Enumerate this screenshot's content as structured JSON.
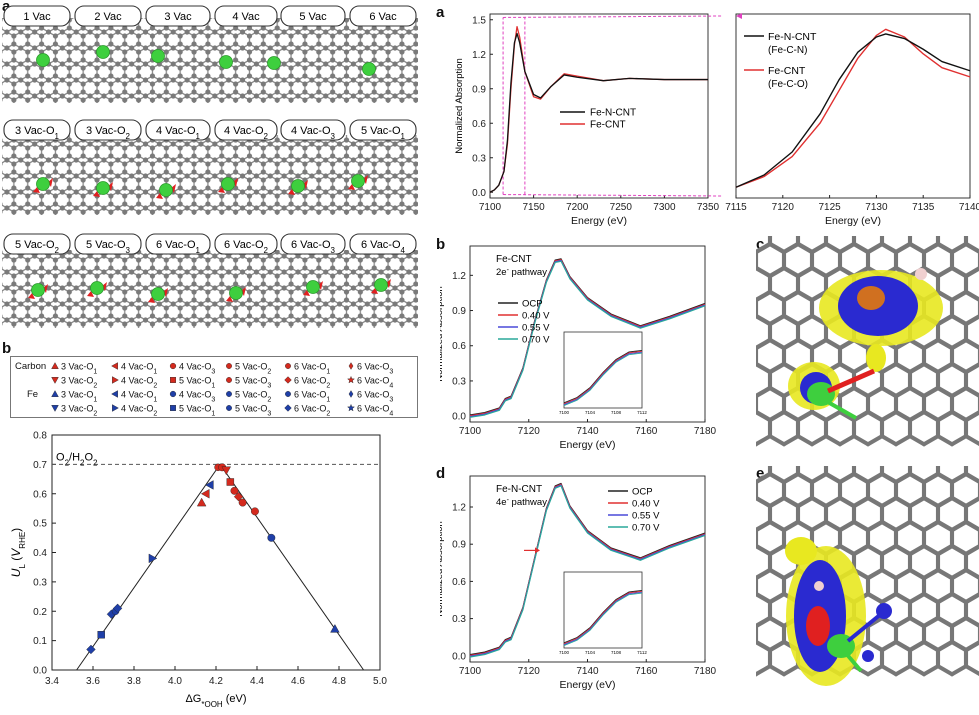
{
  "figure": {
    "panel_labels": {
      "left_a": "a",
      "left_b": "b",
      "right_a": "a",
      "right_b": "b",
      "right_c": "c",
      "right_d": "d",
      "right_e": "e"
    },
    "structures": {
      "row1": [
        "1 Vac",
        "2 Vac",
        "3 Vac",
        "4 Vac",
        "5 Vac",
        "6 Vac"
      ],
      "row2": [
        "3 Vac-O1",
        "3 Vac-O2",
        "4 Vac-O1",
        "4 Vac-O2",
        "4 Vac-O3",
        "5 Vac-O1"
      ],
      "row3": [
        "5 Vac-O2",
        "5 Vac-O3",
        "6 Vac-O1",
        "6 Vac-O2",
        "6 Vac-O3",
        "6 Vac-O4"
      ]
    },
    "legend_b": {
      "carbon_label": "Carbon",
      "fe_label": "Fe",
      "row_items": [
        [
          "3 Vac-O1",
          "4 Vac-O1",
          "4 Vac-O3",
          "5 Vac-O2",
          "6 Vac-O1",
          "6 Vac-O3"
        ],
        [
          "3 Vac-O2",
          "4 Vac-O2",
          "5 Vac-O1",
          "5 Vac-O3",
          "6 Vac-O2",
          "6 Vac-O4"
        ]
      ]
    },
    "colors": {
      "carbon_red": "#d42a1e",
      "fe_blue": "#1f3fa8",
      "fe_green": "#3ecf3e",
      "oxygen_red": "#e02020"
    }
  },
  "chart_data": [
    {
      "id": "volcano",
      "type": "scatter",
      "xlabel": "ΔG*OOH (eV)",
      "ylabel": "UL (VRHE)",
      "xlim": [
        3.4,
        5.0
      ],
      "ylim": [
        0.0,
        0.8
      ],
      "x_ticks": [
        "3.4",
        "3.6",
        "3.8",
        "4.0",
        "4.2",
        "4.4",
        "4.6",
        "4.8",
        "5.0"
      ],
      "y_ticks": [
        "0.0",
        "0.1",
        "0.2",
        "0.3",
        "0.4",
        "0.5",
        "0.6",
        "0.7",
        "0.8"
      ],
      "reference_line": {
        "label": "O2/H2O2",
        "y": 0.7
      },
      "volcano_lines": [
        [
          [
            3.52,
            0.0
          ],
          [
            4.22,
            0.7
          ],
          [
            4.92,
            0.0
          ]
        ]
      ],
      "series": [
        {
          "name": "Carbon",
          "points": [
            [
              4.13,
              0.57
            ],
            [
              4.15,
              0.6
            ],
            [
              4.21,
              0.69
            ],
            [
              4.23,
              0.69
            ],
            [
              4.25,
              0.68
            ],
            [
              4.27,
              0.64
            ],
            [
              4.29,
              0.61
            ],
            [
              4.31,
              0.59
            ],
            [
              4.33,
              0.57
            ],
            [
              4.39,
              0.54
            ]
          ]
        },
        {
          "name": "Fe",
          "points": [
            [
              3.59,
              0.07
            ],
            [
              3.64,
              0.12
            ],
            [
              3.69,
              0.19
            ],
            [
              3.71,
              0.2
            ],
            [
              3.72,
              0.21
            ],
            [
              3.89,
              0.38
            ],
            [
              4.17,
              0.63
            ],
            [
              4.47,
              0.45
            ],
            [
              4.78,
              0.14
            ]
          ]
        }
      ]
    },
    {
      "id": "xanes_full",
      "type": "line",
      "xlabel": "Energy (eV)",
      "ylabel": "Normalized Absorption",
      "xlim": [
        7100,
        7350
      ],
      "ylim": [
        -0.05,
        1.55
      ],
      "x_ticks": [
        "7100",
        "7150",
        "7200",
        "7250",
        "7300",
        "7350"
      ],
      "y_ticks": [
        "0.0",
        "0.3",
        "0.6",
        "0.9",
        "1.2",
        "1.5"
      ],
      "series": [
        {
          "name": "Fe-N-CNT",
          "color": "#111111",
          "x": [
            7100,
            7105,
            7110,
            7113,
            7116,
            7120,
            7124,
            7128,
            7131,
            7134,
            7140,
            7150,
            7158,
            7170,
            7185,
            7200,
            7230,
            7260,
            7300,
            7350
          ],
          "y": [
            0.0,
            0.02,
            0.06,
            0.12,
            0.18,
            0.45,
            0.95,
            1.3,
            1.38,
            1.3,
            1.05,
            0.85,
            0.82,
            0.92,
            1.02,
            1.0,
            0.97,
            0.99,
            0.98,
            0.98
          ]
        },
        {
          "name": "Fe-CNT",
          "color": "#e03030",
          "x": [
            7100,
            7105,
            7110,
            7113,
            7116,
            7120,
            7124,
            7128,
            7131,
            7134,
            7140,
            7150,
            7158,
            7170,
            7185,
            7200,
            7230,
            7260,
            7300,
            7350
          ],
          "y": [
            0.0,
            0.02,
            0.06,
            0.12,
            0.18,
            0.42,
            0.9,
            1.28,
            1.44,
            1.35,
            1.05,
            0.83,
            0.81,
            0.92,
            1.03,
            1.01,
            0.97,
            0.99,
            0.98,
            0.98
          ]
        }
      ]
    },
    {
      "id": "xanes_zoom",
      "type": "line",
      "xlabel": "Energy (eV)",
      "xlim": [
        7115,
        7140
      ],
      "x_ticks": [
        "7115",
        "7120",
        "7125",
        "7130",
        "7135",
        "7140"
      ],
      "series": [
        {
          "name": "Fe-N-CNT",
          "sub": "(Fe-C-N)",
          "color": "#111111",
          "x": [
            7115,
            7118,
            7121,
            7124,
            7126,
            7128,
            7130,
            7131,
            7133,
            7135,
            7137,
            7140
          ],
          "y": [
            0.02,
            0.1,
            0.25,
            0.5,
            0.72,
            0.9,
            1.0,
            1.02,
            0.99,
            0.92,
            0.84,
            0.78
          ]
        },
        {
          "name": "Fe-CNT",
          "sub": "(Fe-C-O)",
          "color": "#e03030",
          "x": [
            7115,
            7118,
            7121,
            7124,
            7126,
            7128,
            7130,
            7131,
            7133,
            7135,
            7137,
            7140
          ],
          "y": [
            0.02,
            0.09,
            0.22,
            0.44,
            0.65,
            0.86,
            1.01,
            1.05,
            1.0,
            0.89,
            0.8,
            0.74
          ]
        }
      ]
    },
    {
      "id": "fe_cnt_operando",
      "type": "line",
      "title": "Fe-CNT",
      "subtitle": "2e- pathway",
      "xlabel": "Energy (eV)",
      "ylabel": "Normalized Absorption",
      "xlim": [
        7100,
        7180
      ],
      "ylim": [
        -0.05,
        1.45
      ],
      "x_ticks": [
        "7100",
        "7120",
        "7140",
        "7160",
        "7180"
      ],
      "y_ticks": [
        "0.0",
        "0.3",
        "0.6",
        "0.9",
        "1.2"
      ],
      "inset_ticks": [
        "7100",
        "7104",
        "7108",
        "7112"
      ],
      "series": [
        {
          "name": "OCP",
          "color": "#222222"
        },
        {
          "name": "0.40 V",
          "color": "#e03030"
        },
        {
          "name": "0.55 V",
          "color": "#4a4ad8"
        },
        {
          "name": "0.70 V",
          "color": "#2aa89a"
        }
      ],
      "x": [
        7100,
        7105,
        7110,
        7112,
        7114,
        7118,
        7122,
        7126,
        7129,
        7131,
        7134,
        7140,
        7148,
        7158,
        7168,
        7180
      ],
      "y": [
        0.0,
        0.02,
        0.06,
        0.14,
        0.16,
        0.4,
        0.8,
        1.15,
        1.32,
        1.33,
        1.18,
        1.0,
        0.86,
        0.76,
        0.84,
        0.95
      ]
    },
    {
      "id": "fe_n_cnt_operando",
      "type": "line",
      "title": "Fe-N-CNT",
      "subtitle": "4e- pathway",
      "xlabel": "Energy (eV)",
      "ylabel": "Normalized Absorption",
      "xlim": [
        7100,
        7180
      ],
      "ylim": [
        -0.05,
        1.45
      ],
      "x_ticks": [
        "7100",
        "7120",
        "7140",
        "7160",
        "7180"
      ],
      "y_ticks": [
        "0.0",
        "0.3",
        "0.6",
        "0.9",
        "1.2"
      ],
      "inset_ticks": [
        "7100",
        "7104",
        "7108",
        "7112"
      ],
      "series": [
        {
          "name": "OCP",
          "color": "#222222"
        },
        {
          "name": "0.40 V",
          "color": "#e03030"
        },
        {
          "name": "0.55 V",
          "color": "#4a4ad8"
        },
        {
          "name": "0.70 V",
          "color": "#2aa89a"
        }
      ],
      "x": [
        7100,
        7105,
        7110,
        7112,
        7114,
        7118,
        7122,
        7126,
        7129,
        7131,
        7134,
        7140,
        7148,
        7158,
        7168,
        7180
      ],
      "y": [
        0.0,
        0.02,
        0.06,
        0.12,
        0.14,
        0.38,
        0.78,
        1.18,
        1.36,
        1.38,
        1.2,
        1.0,
        0.86,
        0.78,
        0.88,
        0.98
      ]
    }
  ]
}
